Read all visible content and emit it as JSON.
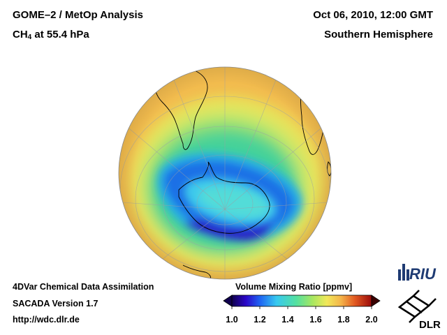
{
  "header": {
    "title_line1": "GOME–2 / MetOp Analysis",
    "title_species": "CH",
    "title_subscript": "4",
    "title_rest": " at 55.4 hPa",
    "date": "Oct 06, 2010, 12:00 GMT",
    "region": "Southern Hemisphere"
  },
  "footer": {
    "line1": "4DVar Chemical Data Assimilation",
    "line2": "SACADA Version 1.7",
    "line3": "http://wdc.dlr.de"
  },
  "colorbar": {
    "title": "Volume Mixing Ratio [ppmv]",
    "ticks": [
      "1.0",
      "1.2",
      "1.4",
      "1.6",
      "1.8",
      "2.0"
    ],
    "min": 1.0,
    "max": 2.0
  },
  "logos": {
    "riu": "RIU",
    "dlr": "DLR"
  },
  "map": {
    "projection": "orthographic",
    "hemisphere": "south"
  }
}
